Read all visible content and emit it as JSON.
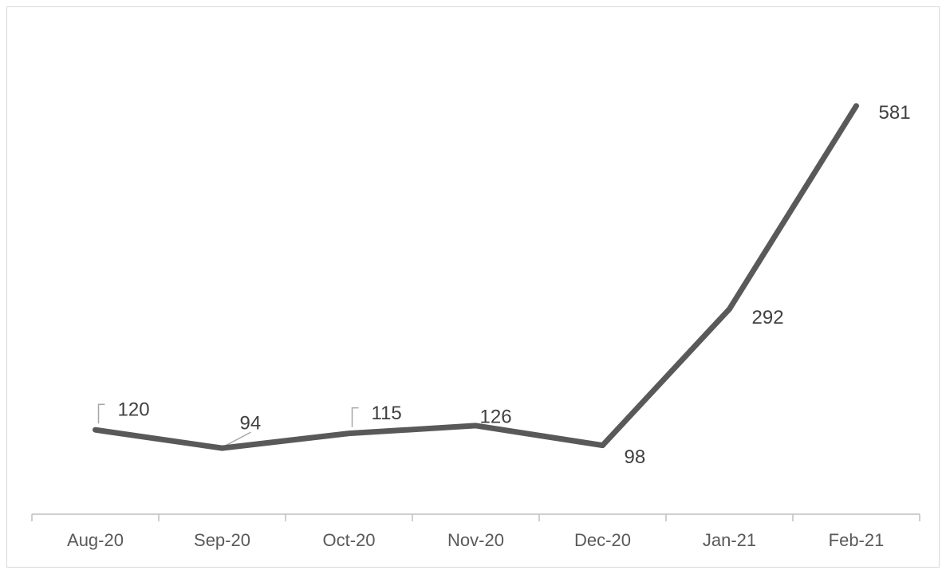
{
  "chart_data": {
    "type": "line",
    "title": "",
    "xlabel": "",
    "ylabel": "",
    "categories": [
      "Aug-20",
      "Sep-20",
      "Oct-20",
      "Nov-20",
      "Dec-20",
      "Jan-21",
      "Feb-21"
    ],
    "series": [
      {
        "values": [
          120,
          94,
          115,
          126,
          98,
          292,
          581
        ],
        "color": "#595959"
      }
    ],
    "data_labels": [
      "120",
      "94",
      "115",
      "126",
      "98",
      "292",
      "581"
    ],
    "ylim": [
      0,
      650
    ],
    "y_axis_visible": false,
    "grid": false,
    "legend": "none",
    "colors": {
      "line": "#595959",
      "axis": "#bfbfbf",
      "leader": "#a6a6a6",
      "text": "#595959"
    }
  }
}
